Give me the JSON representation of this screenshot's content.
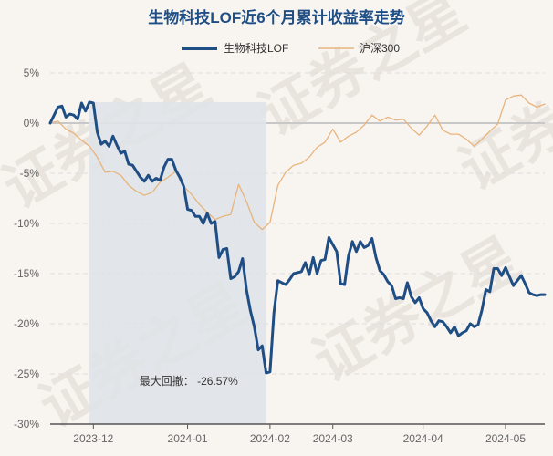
{
  "chart_data": {
    "type": "line",
    "title": "生物科技LOF近6个月累计收益率走势",
    "xlabel": "",
    "ylabel": "",
    "ylim": [
      -30,
      5
    ],
    "yticks": [
      5,
      0,
      -5,
      -10,
      -15,
      -20,
      -25,
      -30
    ],
    "ytick_labels": [
      "5%",
      "0%",
      "-5%",
      "-10%",
      "-15%",
      "-20%",
      "-25%",
      "-30%"
    ],
    "xlim": [
      0,
      126
    ],
    "xticks": [
      11,
      35,
      56,
      72,
      95,
      116
    ],
    "xtick_labels": [
      "2023-12",
      "2024-01",
      "2024-02",
      "2024-03",
      "2024-04",
      "2024-05"
    ],
    "grid": "horizontal",
    "legend_position": "top-center",
    "series": [
      {
        "name": "生物科技LOF",
        "color": "#1f4e85",
        "x": [
          0,
          2,
          3,
          4,
          5,
          6,
          7,
          8,
          9,
          10,
          11,
          12,
          13,
          14,
          15,
          16,
          17,
          18,
          19,
          20,
          21,
          22,
          23,
          24,
          25,
          26,
          27,
          28,
          29,
          30,
          31,
          32,
          33,
          34,
          35,
          36,
          37,
          38,
          39,
          40,
          41,
          42,
          43,
          44,
          45,
          46,
          47,
          48,
          49,
          50,
          51,
          52,
          53,
          54,
          55,
          56,
          57,
          58,
          59,
          60,
          61,
          62,
          63,
          64,
          65,
          66,
          67,
          68,
          69,
          70,
          71,
          72,
          73,
          74,
          75,
          76,
          77,
          78,
          79,
          80,
          81,
          82,
          83,
          84,
          85,
          86,
          87,
          88,
          89,
          90,
          91,
          92,
          93,
          94,
          95,
          96,
          97,
          98,
          99,
          100,
          101,
          102,
          103,
          104,
          105,
          106,
          107,
          108,
          109,
          110,
          111,
          112,
          113,
          114,
          115,
          116,
          117,
          118,
          119,
          120,
          121,
          122,
          123,
          124,
          125,
          126
        ],
        "values": [
          0,
          1.6,
          1.7,
          0.6,
          0.9,
          0.8,
          0.4,
          2.0,
          1.2,
          2.1,
          2.0,
          -0.9,
          -2.1,
          -1.8,
          -2.3,
          -1.3,
          -2.2,
          -3.0,
          -2.8,
          -4.1,
          -4.2,
          -4.8,
          -5.4,
          -5.8,
          -5.2,
          -5.8,
          -5.5,
          -5.7,
          -4.4,
          -3.6,
          -3.6,
          -4.7,
          -5.4,
          -6.3,
          -8.6,
          -8.7,
          -9.3,
          -9.3,
          -10.0,
          -9.0,
          -10.0,
          -9.8,
          -13.4,
          -12.6,
          -12.5,
          -15.5,
          -15.3,
          -14.8,
          -13.5,
          -16.6,
          -18.7,
          -20.3,
          -22.6,
          -22.2,
          -24.9,
          -24.8,
          -18.9,
          -15.7,
          -15.9,
          -16.1,
          -15.6,
          -15.0,
          -14.9,
          -14.8,
          -13.9,
          -15.1,
          -13.4,
          -15.0,
          -13.7,
          -13.6,
          -11.4,
          -12.1,
          -12.8,
          -16.0,
          -16.1,
          -13.2,
          -11.8,
          -12.8,
          -11.8,
          -12.4,
          -12.2,
          -11.5,
          -13.4,
          -14.7,
          -15.1,
          -15.8,
          -16.2,
          -17.5,
          -17.4,
          -17.5,
          -15.9,
          -17.3,
          -17.9,
          -17.4,
          -18.5,
          -18.9,
          -19.7,
          -20.3,
          -19.7,
          -19.8,
          -20.3,
          -20.9,
          -20.3,
          -21.2,
          -20.9,
          -20.7,
          -20.0,
          -20.3,
          -20.1,
          -18.6,
          -16.6,
          -16.8,
          -14.5,
          -14.5,
          -15.2,
          -14.4,
          -15.3,
          -16.2,
          -15.7,
          -15.2,
          -16.0,
          -16.9,
          -17.1,
          -17.2,
          -17.1,
          -17.1
        ],
        "min_annotation": {
          "label": "最大回撤：",
          "value": "-26.57%"
        }
      },
      {
        "name": "沪深300",
        "color": "#e8b47c",
        "x": [
          0,
          2,
          4,
          6,
          8,
          10,
          12,
          14,
          16,
          18,
          20,
          22,
          24,
          26,
          28,
          30,
          32,
          34,
          36,
          38,
          40,
          42,
          44,
          46,
          48,
          50,
          52,
          54,
          56,
          58,
          60,
          62,
          64,
          66,
          68,
          70,
          72,
          74,
          76,
          78,
          80,
          82,
          84,
          86,
          88,
          90,
          92,
          94,
          96,
          98,
          100,
          102,
          104,
          106,
          108,
          110,
          112,
          114,
          116,
          118,
          120,
          122,
          124,
          126
        ],
        "values": [
          0,
          0.2,
          -0.6,
          -1.0,
          -1.7,
          -2.3,
          -3.4,
          -4.9,
          -4.8,
          -5.2,
          -6.2,
          -6.8,
          -7.2,
          -6.9,
          -5.9,
          -5.4,
          -4.8,
          -6.3,
          -7.1,
          -8.1,
          -8.9,
          -9.6,
          -9.3,
          -9.1,
          -6.1,
          -7.8,
          -9.9,
          -10.6,
          -9.9,
          -6.2,
          -4.9,
          -4.2,
          -4.0,
          -3.4,
          -2.4,
          -1.9,
          -0.6,
          -1.9,
          -1.3,
          -0.9,
          -0.2,
          0.8,
          0.2,
          0.6,
          0.3,
          0.4,
          -0.5,
          -1.2,
          -0.3,
          0.8,
          -0.7,
          -1.1,
          -1.1,
          -1.6,
          -2.3,
          -1.6,
          -0.8,
          -0.1,
          2.3,
          2.7,
          2.8,
          2.0,
          1.6,
          1.9
        ]
      }
    ]
  },
  "watermark": "证券之星"
}
